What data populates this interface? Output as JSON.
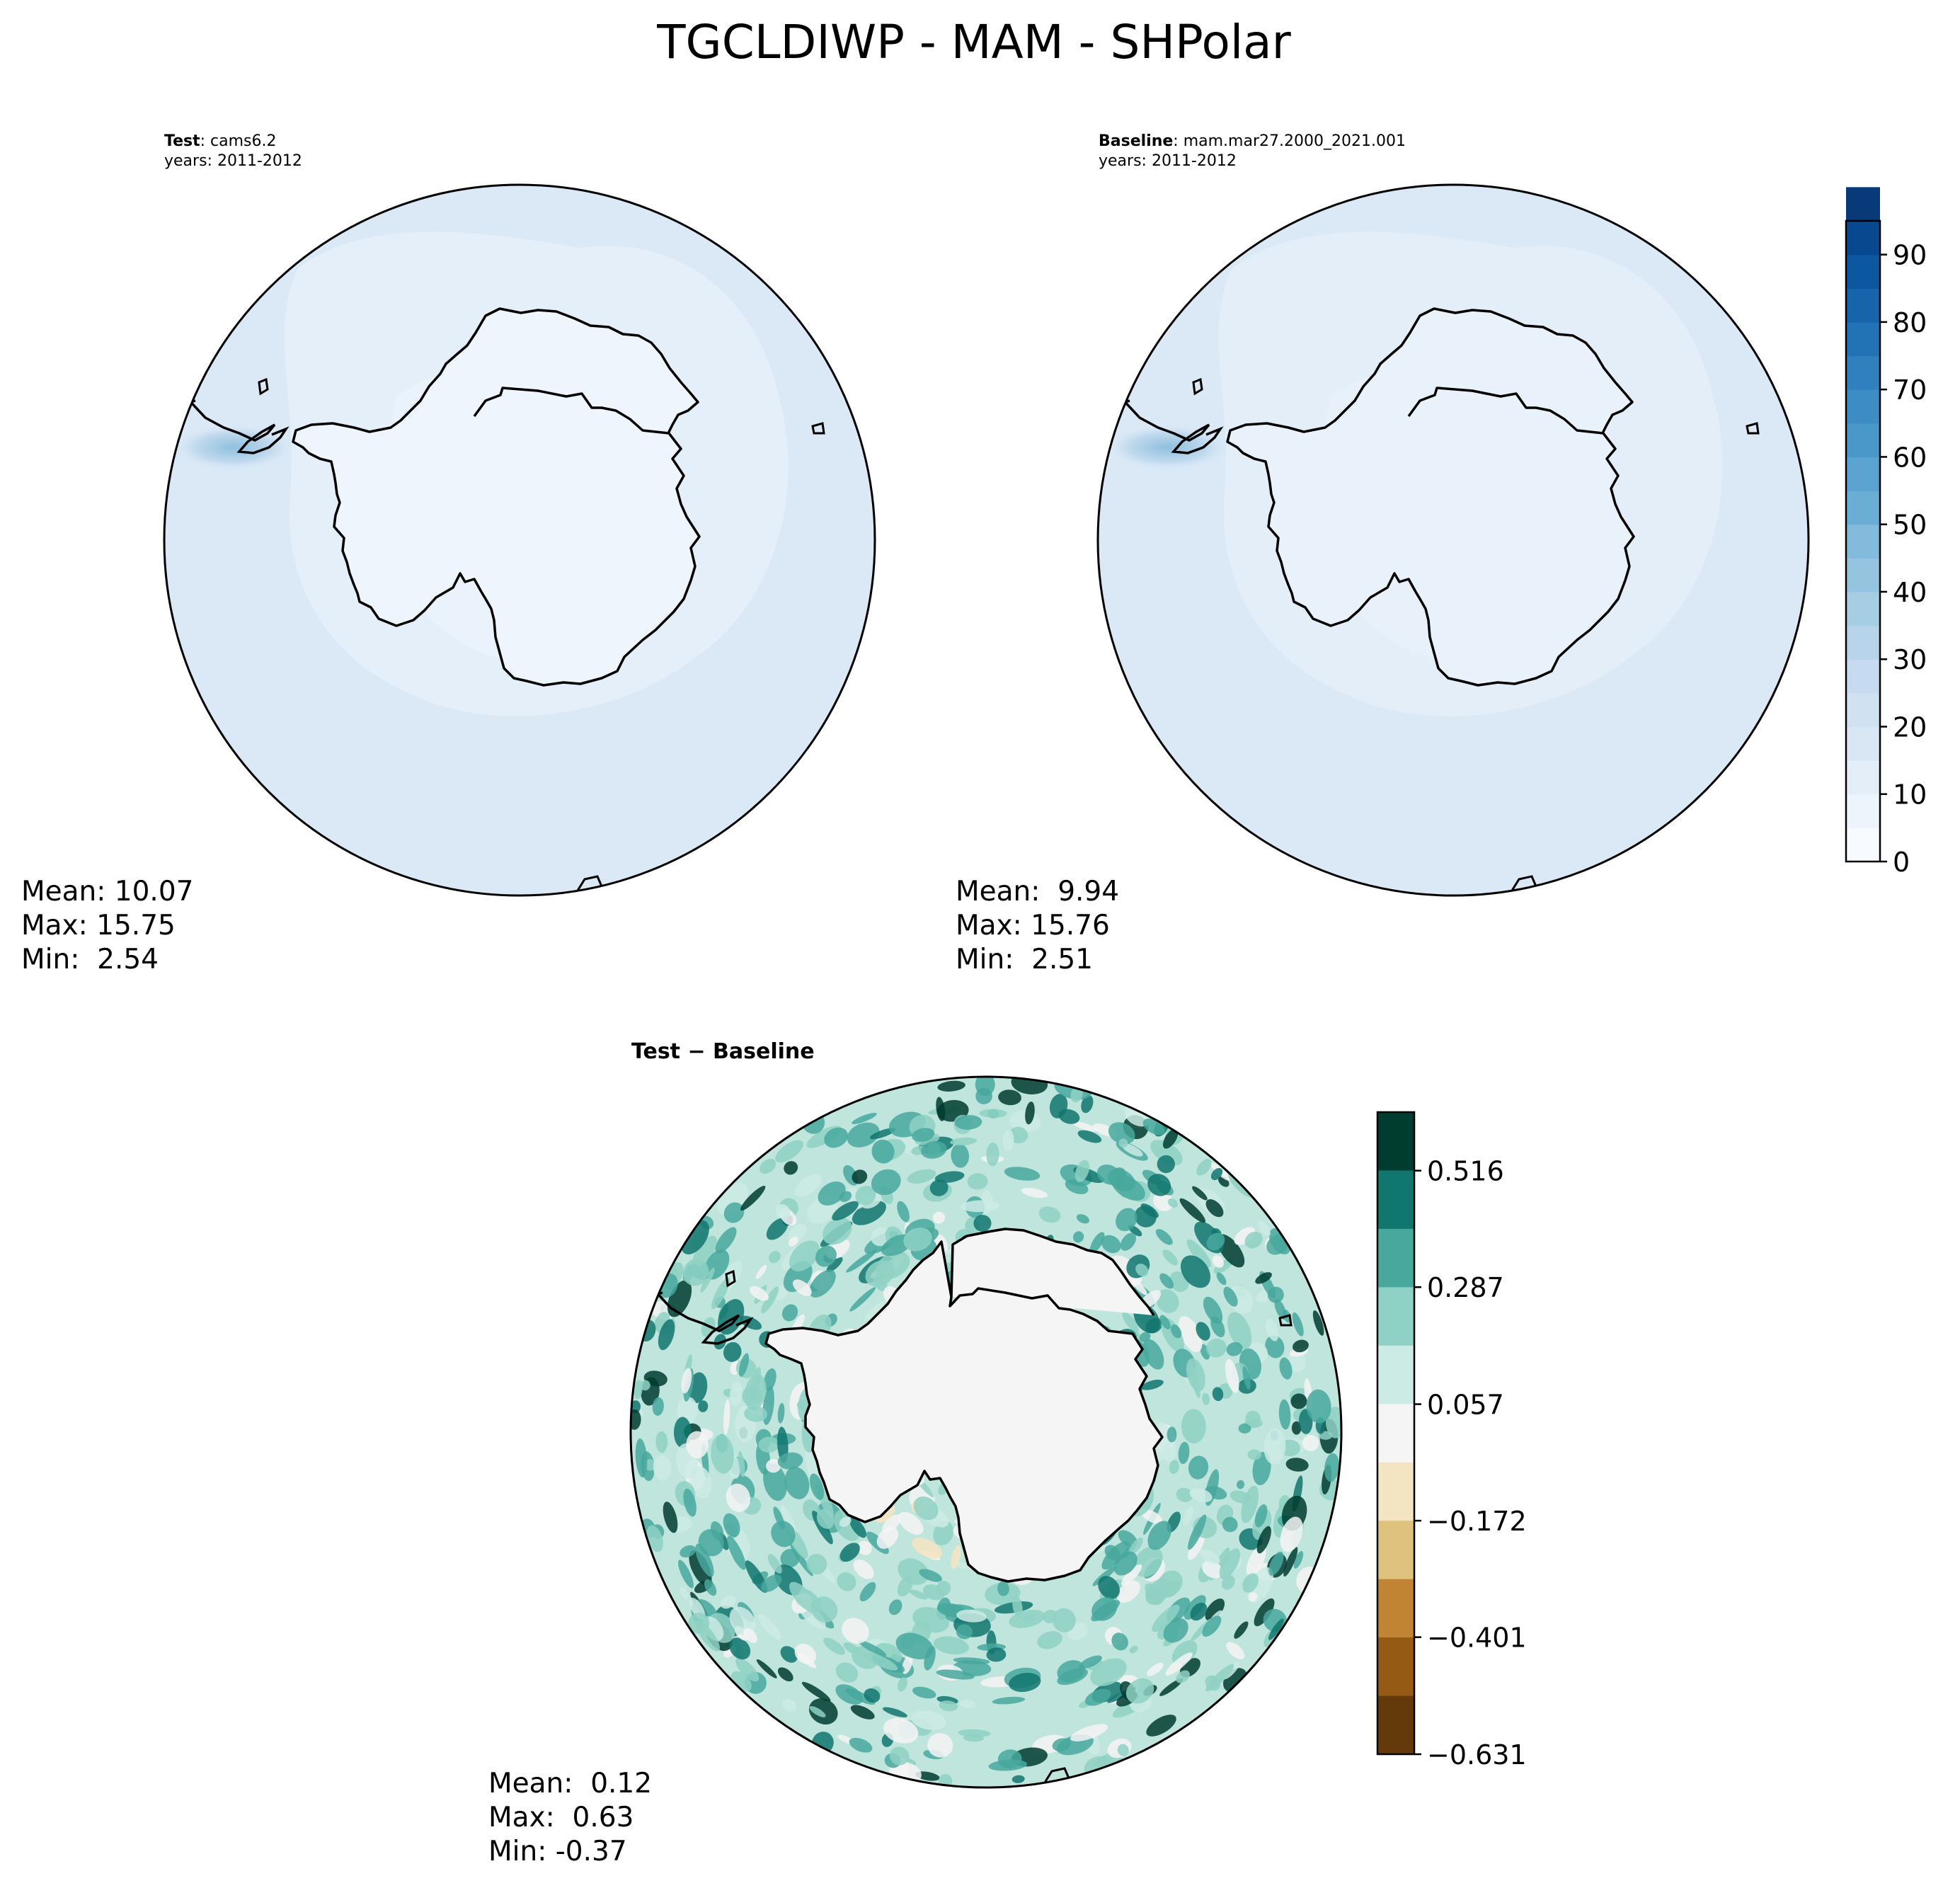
{
  "figure": {
    "title": "TGCLDIWP - MAM - SHPolar"
  },
  "chart_data": [
    {
      "type": "heatmap",
      "projection": "south-polar stereographic",
      "panel": "test",
      "label_bold": "Test",
      "label_rest": ": cams6.2",
      "years": "years: 2011-2012",
      "stats": [
        "Mean: 10.07",
        "Max: 15.75",
        "Min:  2.54"
      ],
      "colormap": "Blues",
      "colors": {
        "background": "#deebf7",
        "outer": "#dbe9f6",
        "land": "#eef5fc",
        "ring": "#e9f2fa",
        "hotspot": "#9ecae1"
      }
    },
    {
      "type": "heatmap",
      "projection": "south-polar stereographic",
      "panel": "baseline",
      "label_bold": "Baseline",
      "label_rest": ": mam.mar27.2000_2021.001",
      "years": "years: 2011-2012",
      "stats": [
        "Mean:  9.94",
        "Max: 15.76",
        "Min:  2.51"
      ],
      "colormap": "Blues",
      "colors": {
        "background": "#deebf7",
        "outer": "#dbe9f6",
        "land": "#e9f2fb",
        "ring": "#e6f0fa",
        "hotspot": "#9ecae1"
      }
    },
    {
      "type": "heatmap",
      "projection": "south-polar stereographic",
      "panel": "difference",
      "label_bold": "Test − Baseline",
      "stats": [
        "Mean:  0.12",
        "Max:  0.63",
        "Min: -0.37"
      ],
      "colormap": "BrBG"
    }
  ],
  "colorbars": {
    "main": {
      "ticks": [
        "0",
        "10",
        "20",
        "30",
        "40",
        "50",
        "60",
        "70",
        "80",
        "90"
      ],
      "tick_values": [
        0,
        10,
        20,
        30,
        40,
        50,
        60,
        70,
        80,
        90
      ],
      "range": [
        0,
        95
      ],
      "step": 5,
      "colors": [
        "#f7fbff",
        "#edf4fc",
        "#e3eef9",
        "#d9e7f5",
        "#d0e1f2",
        "#c6dbef",
        "#b7d4ea",
        "#a5cde3",
        "#94c4df",
        "#82bbdb",
        "#6aaed6",
        "#5ba3d0",
        "#4a98c9",
        "#3d8dc4",
        "#3080bd",
        "#2272b6",
        "#1764ab",
        "#0d57a1",
        "#08488e",
        "#083a7a"
      ]
    },
    "diff": {
      "ticks": [
        "0.516",
        "0.287",
        "0.057",
        "−0.172",
        "−0.401",
        "−0.631"
      ],
      "tick_values": [
        0.516,
        0.287,
        0.057,
        -0.172,
        -0.401,
        -0.631
      ],
      "range": [
        -0.631,
        0.631
      ],
      "colors": [
        "#003c30",
        "#11766e",
        "#48a89e",
        "#8fd1c4",
        "#cdebe5",
        "#f5f5f5",
        "#f4e5c2",
        "#dfc27e",
        "#c08434",
        "#955a14",
        "#643a0b"
      ]
    }
  }
}
